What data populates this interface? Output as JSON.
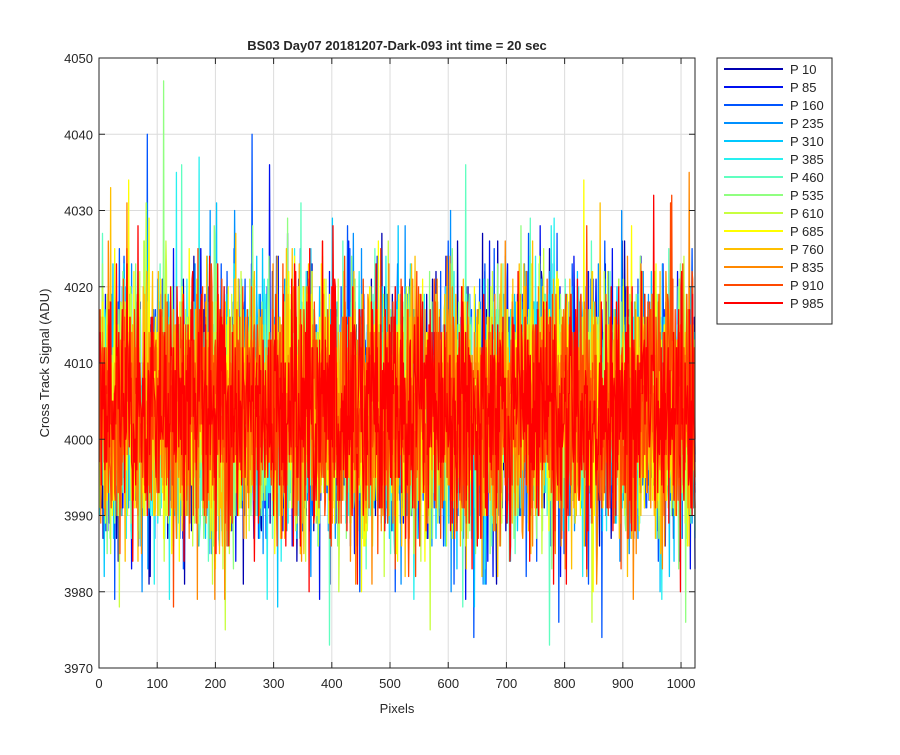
{
  "chart_data": {
    "type": "line",
    "title": "BS03 Day07 20181207-Dark-093 int time = 20 sec",
    "xlabel": "Pixels",
    "ylabel": "Cross Track Signal (ADU)",
    "xlim": [
      0,
      1024
    ],
    "ylim": [
      3970,
      4050
    ],
    "xticks": [
      0,
      100,
      200,
      300,
      400,
      500,
      600,
      700,
      800,
      900,
      1000
    ],
    "yticks": [
      3970,
      3980,
      3990,
      4000,
      4010,
      4020,
      4030,
      4040,
      4050
    ],
    "grid": true,
    "legend_position": "outside-right",
    "n_points": 1024,
    "series_mean_adu": 4004,
    "series_std_adu": 8,
    "series": [
      {
        "name": "P 10",
        "color": "#0000b0",
        "min": 3981,
        "max": 4027
      },
      {
        "name": "P 85",
        "color": "#0010f0",
        "min": 3979,
        "max": 4036
      },
      {
        "name": "P 160",
        "color": "#0055ff",
        "min": 3974,
        "max": 4040
      },
      {
        "name": "P 235",
        "color": "#0090ff",
        "min": 3980,
        "max": 4030
      },
      {
        "name": "P 310",
        "color": "#00c8ff",
        "min": 3978,
        "max": 4031
      },
      {
        "name": "P 385",
        "color": "#28f0f0",
        "min": 3979,
        "max": 4037
      },
      {
        "name": "P 460",
        "color": "#60ffc0",
        "min": 3973,
        "max": 4036
      },
      {
        "name": "P 535",
        "color": "#90ff80",
        "min": 3976,
        "max": 4047
      },
      {
        "name": "P 610",
        "color": "#c8ff40",
        "min": 3975,
        "max": 4031
      },
      {
        "name": "P 685",
        "color": "#ffff00",
        "min": 3980,
        "max": 4034
      },
      {
        "name": "P 760",
        "color": "#ffc000",
        "min": 3982,
        "max": 4033
      },
      {
        "name": "P 835",
        "color": "#ff8800",
        "min": 3979,
        "max": 4035
      },
      {
        "name": "P 910",
        "color": "#ff4800",
        "min": 3978,
        "max": 4032
      },
      {
        "name": "P 985",
        "color": "#ff0000",
        "min": 3980,
        "max": 4032
      }
    ]
  }
}
